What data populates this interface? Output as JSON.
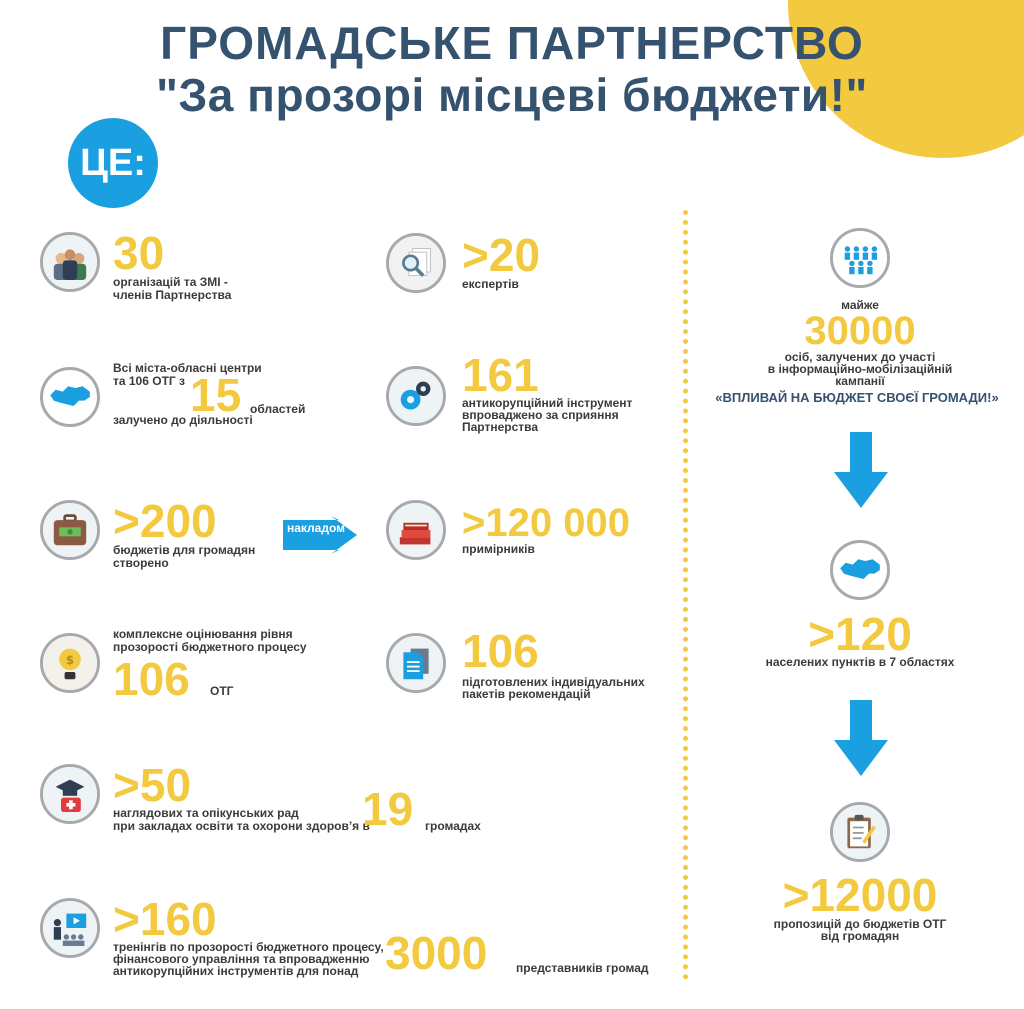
{
  "header": {
    "line1": "ГРОМАДСЬКЕ ПАРТНЕРСТВО",
    "line2": "\"За прозорі місцеві бюджети!\"",
    "badge": "ЦЕ:"
  },
  "colors": {
    "title": "#35526f",
    "accent_yellow": "#f2c93f",
    "accent_blue": "#1a9fe0",
    "icon_ring": "#a7a9ac",
    "text": "#3b3b3b"
  },
  "left": {
    "r1": {
      "num": "30",
      "label1": "організацій та ЗМІ -",
      "label2": "членів Партнерства",
      "icon": "people-icon"
    },
    "r2": {
      "pre1": "Всі міста-обласні центри",
      "pre2": "та 106 ОТГ з",
      "num": "15",
      "post": "областей",
      "label": "залучено до діяльності",
      "icon": "ukraine-map-icon"
    },
    "r3": {
      "num": ">200",
      "label1": "бюджетів для громадян",
      "label2": "створено",
      "icon": "briefcase-money-icon"
    },
    "r4": {
      "pre1": "комплексне оцінювання рівня",
      "pre2": "прозорості бюджетного процесу",
      "num": "106",
      "post": "ОТГ",
      "icon": "lightbulb-icon"
    },
    "r5": {
      "num": ">50",
      "label1": "наглядових та опікунських рад",
      "label2": "при закладах освіти та охорони здоров’я в",
      "num2": "19",
      "post": "громадах",
      "icon": "graduation-medical-icon"
    },
    "r6": {
      "num": ">160",
      "label1": "тренінгів по прозорості бюджетного процесу,",
      "label2": "фінансового управління та впровадженню",
      "label3": "антикорупційних інструментів для понад",
      "num2": "3000",
      "post": "представників громад",
      "icon": "training-icon"
    }
  },
  "middle": {
    "r1": {
      "num": ">20",
      "label": "експертів",
      "icon": "magnifier-document-icon"
    },
    "r2": {
      "num": "161",
      "label1": "антикорупційний інструмент",
      "label2": "впроваджено за сприяння",
      "label3": "Партнерства",
      "icon": "gears-icon"
    },
    "r3": {
      "arrow": "накладом",
      "num": ">120 000",
      "label": "примірників",
      "icon": "books-icon"
    },
    "r4": {
      "num": "106",
      "label1": "підготовлених індивідуальних",
      "label2": "пакетів рекомендацій",
      "icon": "document-icon"
    }
  },
  "right": {
    "s1": {
      "pre": "майже",
      "num": "30000",
      "label1": "осіб, залучених до участі",
      "label2": "в інформаційно-мобілізаційній",
      "label3": "кампанії",
      "campaign": "«ВПЛИВАЙ НА БЮДЖЕТ СВОЄЇ ГРОМАДИ!»",
      "icon": "crowd-icon"
    },
    "s2": {
      "num": ">120",
      "label": "населених пунктів в 7 областях",
      "icon": "ukraine-map-icon"
    },
    "s3": {
      "num": ">12000",
      "label1": "пропозицій до бюджетів ОТГ",
      "label2": "від громадян",
      "icon": "clipboard-pen-icon"
    }
  }
}
